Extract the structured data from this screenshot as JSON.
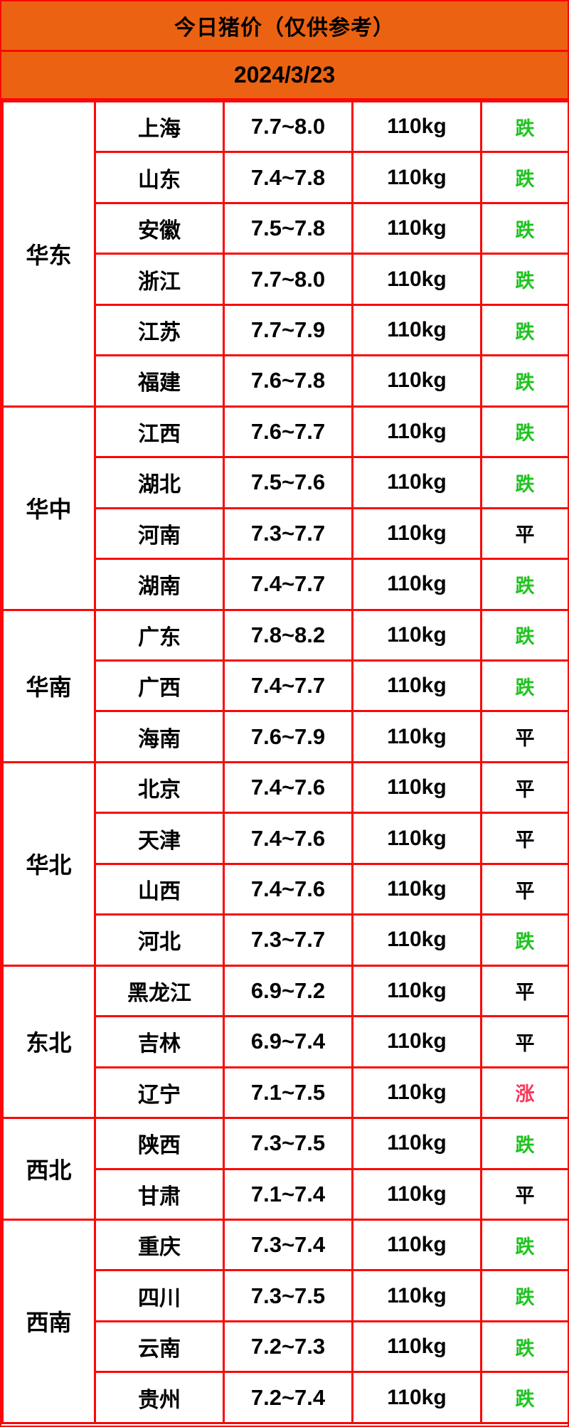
{
  "header": {
    "title": "今日猪价（仅供参考）",
    "date": "2024/3/23"
  },
  "theme": {
    "header_bg": "#EB6312",
    "border_color": "#FB0707",
    "cell_bg": "#FFFFFF",
    "text_color": "#000000",
    "fall_color": "#1FC31F",
    "rise_color": "#F8395A",
    "flat_color": "#000000"
  },
  "chart_data": {
    "type": "table",
    "title": "今日猪价（仅供参考）",
    "date": "2024/3/23",
    "trend_legend": {
      "fall": "跌",
      "flat": "平",
      "rise": "涨"
    },
    "regions": [
      {
        "name": "华东",
        "rows": [
          {
            "province": "上海",
            "price": "7.7~8.0",
            "weight": "110kg",
            "trend": "跌",
            "status": "fall"
          },
          {
            "province": "山东",
            "price": "7.4~7.8",
            "weight": "110kg",
            "trend": "跌",
            "status": "fall"
          },
          {
            "province": "安徽",
            "price": "7.5~7.8",
            "weight": "110kg",
            "trend": "跌",
            "status": "fall"
          },
          {
            "province": "浙江",
            "price": "7.7~8.0",
            "weight": "110kg",
            "trend": "跌",
            "status": "fall"
          },
          {
            "province": "江苏",
            "price": "7.7~7.9",
            "weight": "110kg",
            "trend": "跌",
            "status": "fall"
          },
          {
            "province": "福建",
            "price": "7.6~7.8",
            "weight": "110kg",
            "trend": "跌",
            "status": "fall"
          }
        ]
      },
      {
        "name": "华中",
        "rows": [
          {
            "province": "江西",
            "price": "7.6~7.7",
            "weight": "110kg",
            "trend": "跌",
            "status": "fall"
          },
          {
            "province": "湖北",
            "price": "7.5~7.6",
            "weight": "110kg",
            "trend": "跌",
            "status": "fall"
          },
          {
            "province": "河南",
            "price": "7.3~7.7",
            "weight": "110kg",
            "trend": "平",
            "status": "flat"
          },
          {
            "province": "湖南",
            "price": "7.4~7.7",
            "weight": "110kg",
            "trend": "跌",
            "status": "fall"
          }
        ]
      },
      {
        "name": "华南",
        "rows": [
          {
            "province": "广东",
            "price": "7.8~8.2",
            "weight": "110kg",
            "trend": "跌",
            "status": "fall"
          },
          {
            "province": "广西",
            "price": "7.4~7.7",
            "weight": "110kg",
            "trend": "跌",
            "status": "fall"
          },
          {
            "province": "海南",
            "price": "7.6~7.9",
            "weight": "110kg",
            "trend": "平",
            "status": "flat"
          }
        ]
      },
      {
        "name": "华北",
        "rows": [
          {
            "province": "北京",
            "price": "7.4~7.6",
            "weight": "110kg",
            "trend": "平",
            "status": "flat"
          },
          {
            "province": "天津",
            "price": "7.4~7.6",
            "weight": "110kg",
            "trend": "平",
            "status": "flat"
          },
          {
            "province": "山西",
            "price": "7.4~7.6",
            "weight": "110kg",
            "trend": "平",
            "status": "flat"
          },
          {
            "province": "河北",
            "price": "7.3~7.7",
            "weight": "110kg",
            "trend": "跌",
            "status": "fall"
          }
        ]
      },
      {
        "name": "东北",
        "rows": [
          {
            "province": "黑龙江",
            "price": "6.9~7.2",
            "weight": "110kg",
            "trend": "平",
            "status": "flat"
          },
          {
            "province": "吉林",
            "price": "6.9~7.4",
            "weight": "110kg",
            "trend": "平",
            "status": "flat"
          },
          {
            "province": "辽宁",
            "price": "7.1~7.5",
            "weight": "110kg",
            "trend": "涨",
            "status": "rise"
          }
        ]
      },
      {
        "name": "西北",
        "rows": [
          {
            "province": "陕西",
            "price": "7.3~7.5",
            "weight": "110kg",
            "trend": "跌",
            "status": "fall"
          },
          {
            "province": "甘肃",
            "price": "7.1~7.4",
            "weight": "110kg",
            "trend": "平",
            "status": "flat"
          }
        ]
      },
      {
        "name": "西南",
        "rows": [
          {
            "province": "重庆",
            "price": "7.3~7.4",
            "weight": "110kg",
            "trend": "跌",
            "status": "fall"
          },
          {
            "province": "四川",
            "price": "7.3~7.5",
            "weight": "110kg",
            "trend": "跌",
            "status": "fall"
          },
          {
            "province": "云南",
            "price": "7.2~7.3",
            "weight": "110kg",
            "trend": "跌",
            "status": "fall"
          },
          {
            "province": "贵州",
            "price": "7.2~7.4",
            "weight": "110kg",
            "trend": "跌",
            "status": "fall"
          }
        ]
      }
    ]
  }
}
